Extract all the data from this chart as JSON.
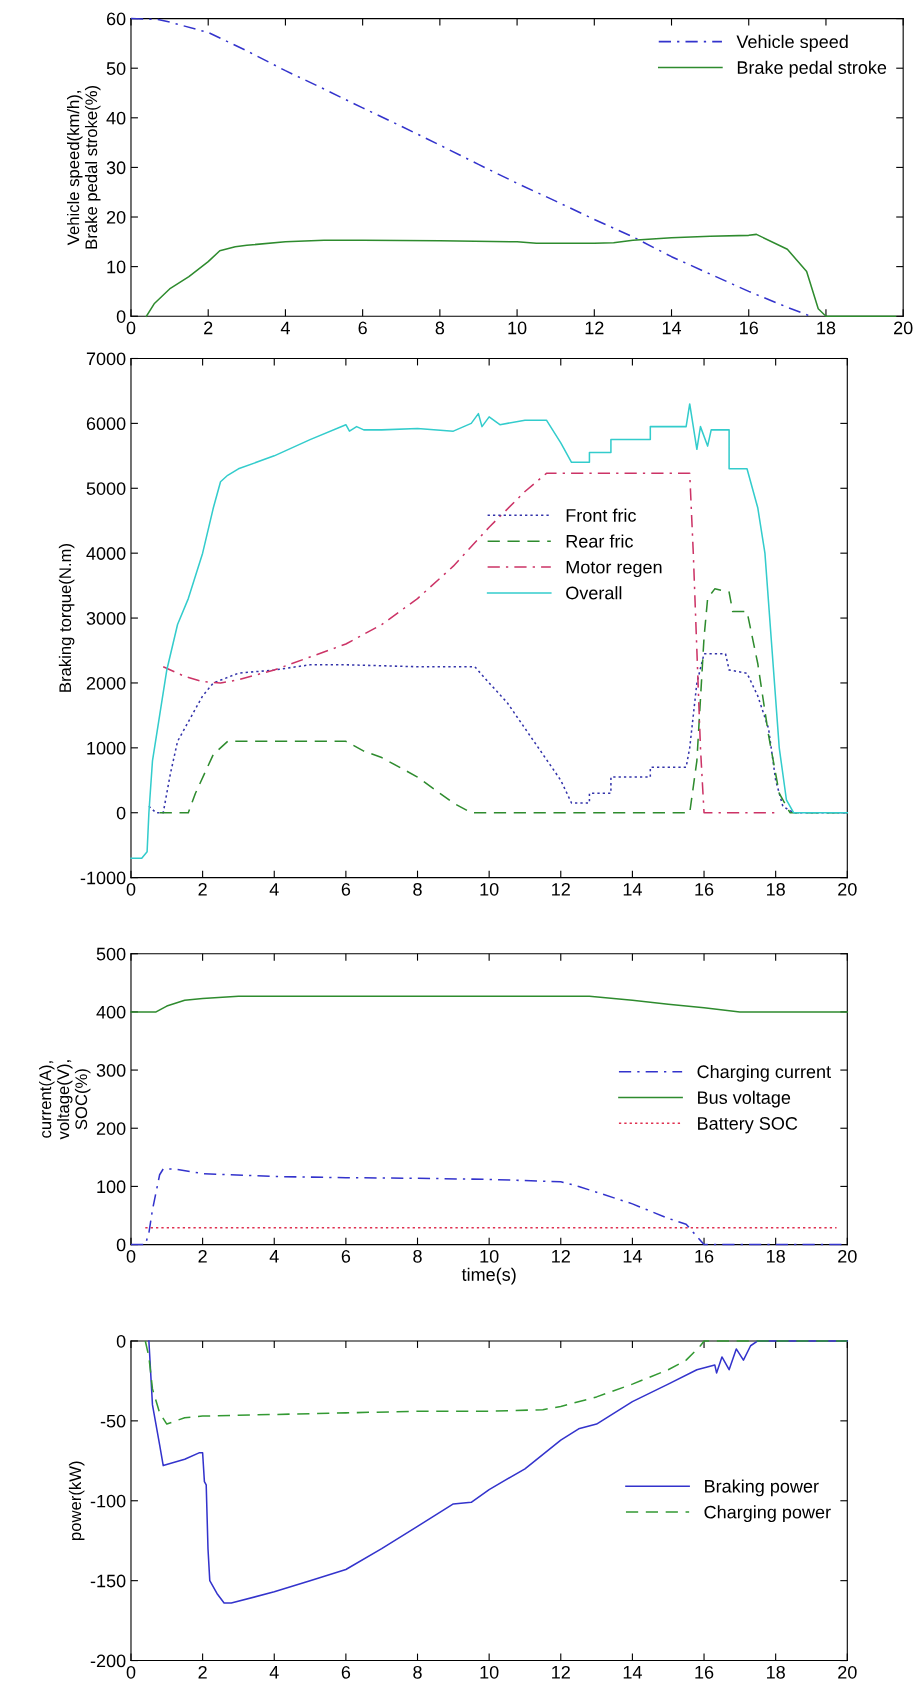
{
  "chart_data": [
    {
      "type": "line",
      "ylabel": "Vehicle speed(km/h),\nBrake pedal stroke(%)",
      "xlim": [
        0,
        20
      ],
      "xticks": [
        0,
        2,
        4,
        6,
        8,
        10,
        12,
        14,
        16,
        18,
        20
      ],
      "ylim": [
        0,
        60
      ],
      "yticks": [
        0,
        10,
        20,
        30,
        40,
        50,
        60
      ],
      "grid": false,
      "legend": "top right",
      "marker": "none",
      "series": [
        {
          "name": "Vehicle speed",
          "color": "#3333cc",
          "line_style": "dashdot",
          "x": [
            0,
            0.7,
            1,
            2,
            3,
            4,
            5,
            6,
            7,
            8,
            9,
            10,
            11,
            12,
            13,
            14,
            15,
            16,
            17,
            17.6
          ],
          "values": [
            60,
            59.8,
            59.3,
            57.2,
            53.5,
            49.5,
            45.8,
            42,
            38.3,
            34.5,
            30.6,
            26.8,
            23.2,
            19.5,
            16,
            12,
            8.5,
            5,
            1.8,
            0
          ]
        },
        {
          "name": "Brake pedal stroke",
          "color": "#2e8b2e",
          "line_style": "solid",
          "x": [
            0.4,
            0.6,
            1,
            1.5,
            2,
            2.3,
            2.7,
            3,
            4,
            5,
            6,
            8,
            10,
            10.5,
            12,
            12.5,
            13,
            14,
            15,
            16,
            16.2,
            17,
            17.5,
            17.8,
            18,
            19.8
          ],
          "values": [
            0,
            2.5,
            5.5,
            8,
            11,
            13.2,
            14,
            14.3,
            15,
            15.3,
            15.3,
            15.2,
            15,
            14.7,
            14.7,
            14.8,
            15.3,
            15.8,
            16.1,
            16.3,
            16.5,
            13.5,
            9,
            1.5,
            0,
            0
          ]
        }
      ]
    },
    {
      "type": "line",
      "ylabel": "Braking torque(N.m)",
      "xlim": [
        0,
        20
      ],
      "xticks": [
        0,
        2,
        4,
        6,
        8,
        10,
        12,
        14,
        16,
        18,
        20
      ],
      "ylim": [
        -1000,
        7000
      ],
      "yticks": [
        -1000,
        0,
        1000,
        2000,
        3000,
        4000,
        5000,
        6000,
        7000
      ],
      "grid": false,
      "legend": "center",
      "marker": "none",
      "series": [
        {
          "name": "Front fric",
          "color": "#3333aa",
          "line_style": "dotted",
          "x": [
            0.5,
            0.7,
            0.9,
            1.1,
            1.3,
            1.7,
            2,
            2.3,
            3,
            4,
            5,
            6,
            8,
            9.6,
            10,
            10.5,
            11,
            11.5,
            12,
            12.3,
            12.8,
            12.8,
            13.4,
            13.4,
            14.5,
            14.5,
            15.5,
            15.6,
            15.8,
            16,
            16.6,
            16.7,
            17.2,
            17.5,
            17.8,
            18,
            18.2,
            18.5,
            20
          ],
          "values": [
            100,
            0,
            0,
            600,
            1100,
            1500,
            1800,
            2000,
            2150,
            2200,
            2280,
            2280,
            2250,
            2250,
            2000,
            1700,
            1300,
            900,
            500,
            150,
            150,
            300,
            300,
            550,
            550,
            700,
            700,
            1000,
            2000,
            2450,
            2450,
            2200,
            2150,
            1800,
            1300,
            500,
            100,
            0,
            0
          ]
        },
        {
          "name": "Rear fric",
          "color": "#2e8b2e",
          "line_style": "dashed",
          "x": [
            0.8,
            1.6,
            1.8,
            2.3,
            2.7,
            6,
            6.5,
            7,
            8,
            8.5,
            9,
            9.5,
            15.6,
            15.8,
            16,
            16.1,
            16.3,
            16.7,
            16.8,
            17.2,
            17.5,
            17.8,
            18.1,
            18.4,
            20
          ],
          "values": [
            0,
            0,
            300,
            900,
            1100,
            1100,
            950,
            850,
            550,
            350,
            150,
            0,
            0,
            800,
            2700,
            3300,
            3450,
            3400,
            3100,
            3100,
            2300,
            1200,
            300,
            0,
            0
          ]
        },
        {
          "name": "Motor regen",
          "color": "#cc3366",
          "line_style": "dashdot",
          "x": [
            0.9,
            1.5,
            2,
            2.5,
            3,
            4,
            5,
            6,
            7,
            8,
            9,
            10,
            11,
            11.6,
            15.6,
            15.7,
            15.8,
            15.9,
            16,
            18
          ],
          "values": [
            2250,
            2100,
            2020,
            2000,
            2050,
            2200,
            2400,
            2600,
            2900,
            3300,
            3800,
            4400,
            4950,
            5230,
            5230,
            4000,
            2500,
            1000,
            0,
            0
          ]
        },
        {
          "name": "Overall",
          "color": "#33cccc",
          "line_style": "solid",
          "x": [
            0,
            0.3,
            0.45,
            0.5,
            0.6,
            0.8,
            1,
            1.3,
            1.6,
            2,
            2.3,
            2.5,
            2.7,
            3,
            4,
            5,
            6,
            6.1,
            6.3,
            6.5,
            7,
            8,
            9,
            9.5,
            9.7,
            9.8,
            10,
            10.3,
            11,
            11.6,
            12,
            12.3,
            12.8,
            12.8,
            13.4,
            13.4,
            14.5,
            14.5,
            15.5,
            15.6,
            15.8,
            15.9,
            16.1,
            16.2,
            16.7,
            16.7,
            17.2,
            17.5,
            17.7,
            17.9,
            18.1,
            18.3,
            18.5,
            20
          ],
          "values": [
            -700,
            -700,
            -600,
            0,
            800,
            1500,
            2200,
            2900,
            3300,
            4000,
            4700,
            5100,
            5200,
            5300,
            5500,
            5750,
            5980,
            5880,
            5950,
            5900,
            5900,
            5920,
            5880,
            6000,
            6150,
            5950,
            6100,
            5980,
            6050,
            6050,
            5700,
            5400,
            5400,
            5550,
            5550,
            5750,
            5750,
            5950,
            5950,
            6300,
            5600,
            5950,
            5650,
            5900,
            5900,
            5300,
            5300,
            4700,
            4000,
            2500,
            1000,
            200,
            0,
            0
          ]
        }
      ]
    },
    {
      "type": "line",
      "ylabel": "current(A),\nvoltage(V),\nSOC(%)",
      "xlabel": "time(s)",
      "xlim": [
        0,
        20
      ],
      "xticks": [
        0,
        2,
        4,
        6,
        8,
        10,
        12,
        14,
        16,
        18,
        20
      ],
      "ylim": [
        0,
        500
      ],
      "yticks": [
        0,
        100,
        200,
        300,
        400,
        500
      ],
      "grid": false,
      "legend": "right",
      "marker": "none",
      "series": [
        {
          "name": "Charging current",
          "color": "#3333cc",
          "line_style": "dashdot",
          "x": [
            0,
            0.4,
            0.5,
            0.6,
            0.8,
            0.9,
            1.2,
            2,
            4,
            6,
            8,
            10,
            12,
            12.5,
            13,
            14,
            15,
            15.5,
            16,
            20
          ],
          "values": [
            0,
            0,
            20,
            60,
            120,
            130,
            130,
            122,
            117,
            115,
            114,
            112,
            108,
            100,
            90,
            70,
            45,
            35,
            0,
            0
          ]
        },
        {
          "name": "Bus voltage",
          "color": "#2e8b2e",
          "line_style": "solid",
          "x": [
            0,
            0.7,
            1,
            1.5,
            2,
            3,
            12.8,
            14,
            15,
            16,
            17,
            17.5,
            20
          ],
          "values": [
            400,
            400,
            410,
            420,
            423,
            427,
            427,
            420,
            413,
            407,
            400,
            400,
            400
          ]
        },
        {
          "name": "Battery SOC",
          "color": "#e03050",
          "line_style": "dotted",
          "x": [
            0.4,
            19.7
          ],
          "values": [
            29,
            29
          ]
        }
      ]
    },
    {
      "type": "line",
      "ylabel": "power(kW)",
      "xlim": [
        0,
        20
      ],
      "xticks": [
        0,
        2,
        4,
        6,
        8,
        10,
        12,
        14,
        16,
        18,
        20
      ],
      "ylim": [
        -200,
        0
      ],
      "yticks": [
        -200,
        -150,
        -100,
        -50,
        0
      ],
      "grid": false,
      "legend": "right",
      "marker": "none",
      "series": [
        {
          "name": "Braking power",
          "color": "#3333cc",
          "line_style": "solid",
          "x": [
            0.5,
            0.55,
            0.6,
            0.8,
            0.9,
            1.5,
            1.9,
            2.0,
            2.05,
            2.1,
            2.15,
            2.2,
            2.4,
            2.6,
            2.8,
            4,
            5,
            6,
            7,
            8,
            9,
            9.5,
            10,
            11,
            12,
            12.5,
            13,
            14,
            15,
            15.8,
            16.3,
            16.35,
            16.5,
            16.7,
            16.9,
            17.1,
            17.3,
            17.5,
            20
          ],
          "values": [
            0,
            -20,
            -40,
            -65,
            -78,
            -74,
            -70,
            -70,
            -88,
            -90,
            -130,
            -150,
            -158,
            -164,
            -164,
            -157,
            -150,
            -143,
            -130,
            -116,
            -102,
            -101,
            -93,
            -80,
            -62,
            -55,
            -52,
            -38,
            -27,
            -18,
            -15,
            -20,
            -10,
            -18,
            -5,
            -12,
            -3,
            0,
            0
          ]
        },
        {
          "name": "Charging power",
          "color": "#339933",
          "line_style": "dashed",
          "x": [
            0.4,
            0.5,
            0.6,
            0.8,
            1,
            1.5,
            2,
            4,
            6,
            8,
            10,
            11.5,
            12,
            13,
            14,
            15,
            15.5,
            15.9,
            16,
            20
          ],
          "values": [
            0,
            -10,
            -30,
            -45,
            -52,
            -48,
            -47,
            -46,
            -45,
            -44,
            -44,
            -43,
            -41,
            -35,
            -27,
            -18,
            -12,
            -3,
            0,
            0
          ]
        }
      ]
    }
  ]
}
